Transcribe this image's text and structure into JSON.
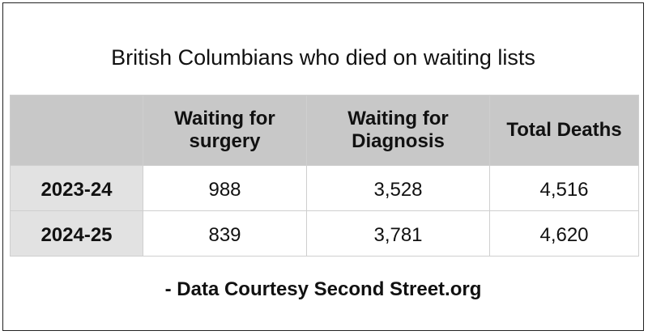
{
  "title": "British Columbians who died on waiting lists",
  "table": {
    "headers": [
      "Waiting for surgery",
      "Waiting for Diagnosis",
      "Total Deaths"
    ],
    "rows": [
      [
        "2023-24",
        "988",
        "3,528",
        "4,516"
      ],
      [
        "2024-25",
        "839",
        "3,781",
        "4,620"
      ]
    ]
  },
  "footer": "- Data Courtesy Second Street.org"
}
